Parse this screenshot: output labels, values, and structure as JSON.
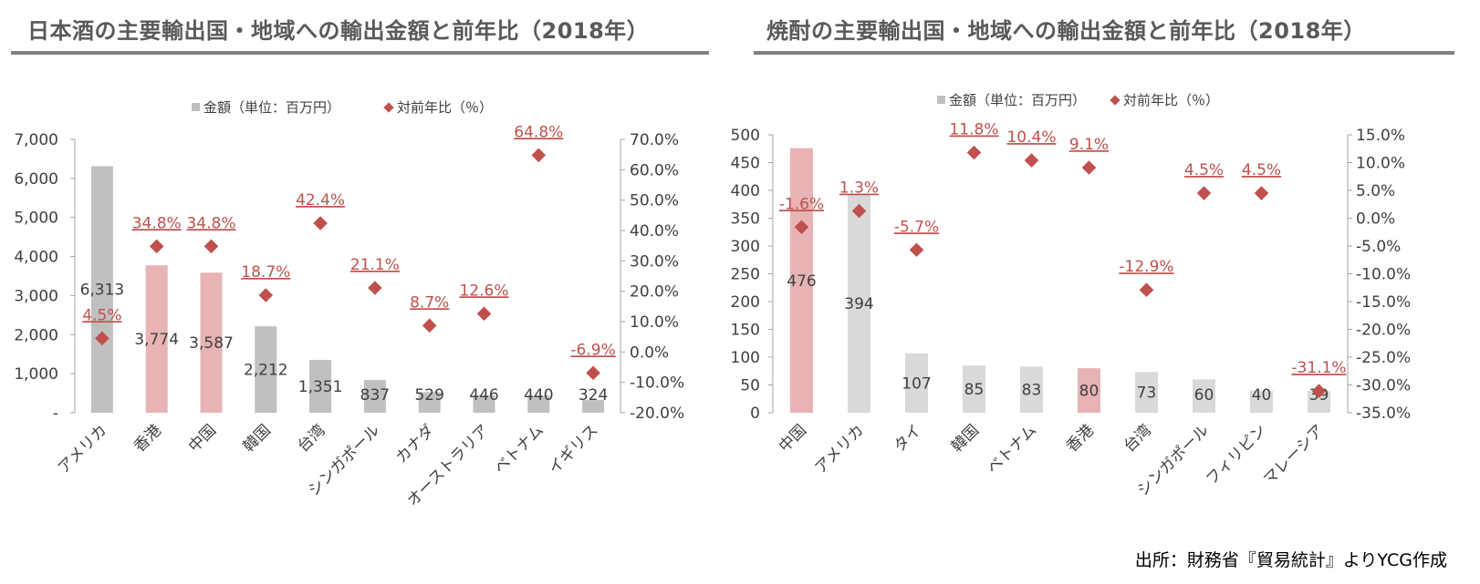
{
  "source_note": "出所：財務省『貿易統計』よりYCG作成",
  "colors": {
    "bar_gray": "#c0c0c0",
    "bar_pink": "#e7b3b5",
    "bar_light": "#d9d9d9",
    "marker": "#c0504d",
    "pct_label": "#c0504d",
    "axis_text": "#404040",
    "title_text": "#595959"
  },
  "chart_data": [
    {
      "type": "bar",
      "title": "日本酒の主要輸出国・地域への輸出金額と前年比（2018年）",
      "legend": {
        "placement": "top",
        "bar_label": "金額（単位：百万円）",
        "marker_label": "対前年比（％）"
      },
      "categories": [
        "アメリカ",
        "香港",
        "中国",
        "韓国",
        "台湾",
        "シンガポール",
        "カナダ",
        "オーストラリア",
        "ベトナム",
        "イギリス"
      ],
      "series": [
        {
          "name": "金額（単位：百万円）",
          "axis": "left",
          "values": [
            6313,
            3774,
            3587,
            2212,
            1351,
            837,
            529,
            446,
            440,
            324
          ],
          "value_labels": [
            "6,313",
            "3,774",
            "3,587",
            "2,212",
            "1,351",
            "837",
            "529",
            "446",
            "440",
            "324"
          ],
          "bar_colors": [
            "gray",
            "pink",
            "pink",
            "gray",
            "gray",
            "gray",
            "gray",
            "gray",
            "gray",
            "gray"
          ]
        },
        {
          "name": "対前年比（％）",
          "axis": "right",
          "type": "scatter",
          "values": [
            4.5,
            34.8,
            34.8,
            18.7,
            42.4,
            21.1,
            8.7,
            12.6,
            64.8,
            -6.9
          ],
          "value_labels": [
            "4.5%",
            "34.8%",
            "34.8%",
            "18.7%",
            "42.4%",
            "21.1%",
            "8.7%",
            "12.6%",
            "64.8%",
            "-6.9%"
          ]
        }
      ],
      "y_left": {
        "ylim": [
          0,
          7000
        ],
        "ticks": [
          0,
          1000,
          2000,
          3000,
          4000,
          5000,
          6000,
          7000
        ],
        "tick_labels": [
          "-",
          "1,000",
          "2,000",
          "3,000",
          "4,000",
          "5,000",
          "6,000",
          "7,000"
        ]
      },
      "y_right": {
        "ylim": [
          -20,
          70
        ],
        "ticks": [
          -20,
          -10,
          0,
          10,
          20,
          30,
          40,
          50,
          60,
          70
        ],
        "tick_labels": [
          "-20.0%",
          "-10.0%",
          "0.0%",
          "10.0%",
          "20.0%",
          "30.0%",
          "40.0%",
          "50.0%",
          "60.0%",
          "70.0%"
        ]
      },
      "grid": false
    },
    {
      "type": "bar",
      "title": "焼酎の主要輸出国・地域への輸出金額と前年比（2018年）",
      "legend": {
        "placement": "top",
        "bar_label": "金額（単位：百万円）",
        "marker_label": "対前年比（％）"
      },
      "categories": [
        "中国",
        "アメリカ",
        "タイ",
        "韓国",
        "ベトナム",
        "香港",
        "台湾",
        "シンガポール",
        "フィリピン",
        "マレーシア"
      ],
      "series": [
        {
          "name": "金額（単位：百万円）",
          "axis": "left",
          "values": [
            476,
            394,
            107,
            85,
            83,
            80,
            73,
            60,
            40,
            39
          ],
          "value_labels": [
            "476",
            "394",
            "107",
            "85",
            "83",
            "80",
            "73",
            "60",
            "40",
            "39"
          ],
          "bar_colors": [
            "pink",
            "light",
            "light",
            "light",
            "light",
            "pink",
            "light",
            "light",
            "light",
            "light"
          ]
        },
        {
          "name": "対前年比（％）",
          "axis": "right",
          "type": "scatter",
          "values": [
            -1.6,
            1.3,
            -5.7,
            11.8,
            10.4,
            9.1,
            -12.9,
            4.5,
            4.5,
            -31.1
          ],
          "value_labels": [
            "-1.6%",
            "1.3%",
            "-5.7%",
            "11.8%",
            "10.4%",
            "9.1%",
            "-12.9%",
            "4.5%",
            "4.5%",
            "-31.1%"
          ]
        }
      ],
      "y_left": {
        "ylim": [
          0,
          500
        ],
        "ticks": [
          0,
          50,
          100,
          150,
          200,
          250,
          300,
          350,
          400,
          450,
          500
        ],
        "tick_labels": [
          "0",
          "50",
          "100",
          "150",
          "200",
          "250",
          "300",
          "350",
          "400",
          "450",
          "500"
        ]
      },
      "y_right": {
        "ylim": [
          -35,
          15
        ],
        "ticks": [
          -35,
          -30,
          -25,
          -20,
          -15,
          -10,
          -5,
          0,
          5,
          10,
          15
        ],
        "tick_labels": [
          "-35.0%",
          "-30.0%",
          "-25.0%",
          "-20.0%",
          "-15.0%",
          "-10.0%",
          "-5.0%",
          "0.0%",
          "5.0%",
          "10.0%",
          "15.0%"
        ]
      },
      "grid": false
    }
  ]
}
